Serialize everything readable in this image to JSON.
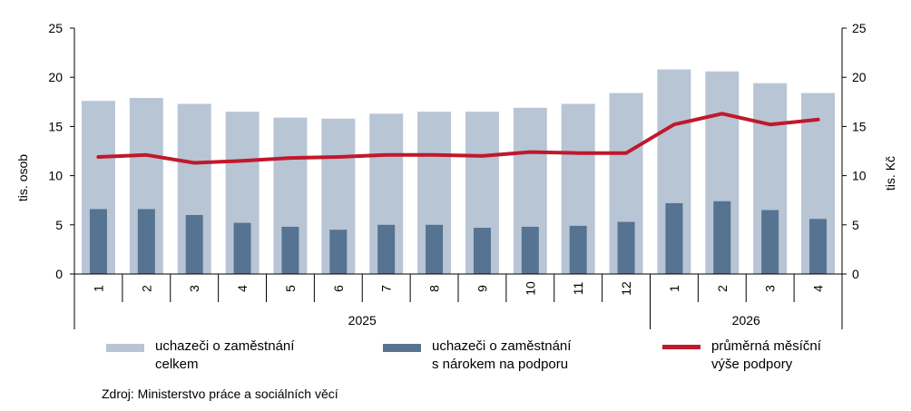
{
  "chart_data": {
    "type": "bar",
    "categories": [
      "1",
      "2",
      "3",
      "4",
      "5",
      "6",
      "7",
      "8",
      "9",
      "10",
      "11",
      "12",
      "1",
      "2",
      "3",
      "4"
    ],
    "groups": [
      {
        "label": "2025",
        "count": 12
      },
      {
        "label": "2026",
        "count": 4
      }
    ],
    "series": [
      {
        "name": "uchazeči o zaměstnání celkem",
        "kind": "bar",
        "axis": "left",
        "color": "#b8c5d4",
        "values": [
          17.6,
          17.9,
          17.3,
          16.5,
          15.9,
          15.8,
          16.3,
          16.5,
          16.5,
          16.9,
          17.3,
          18.4,
          20.8,
          20.6,
          19.4,
          18.4
        ]
      },
      {
        "name": "uchazeči o zaměstnání s nárokem na podporu",
        "kind": "bar",
        "axis": "left",
        "color": "#567392",
        "values": [
          6.6,
          6.6,
          6.0,
          5.2,
          4.8,
          4.5,
          5.0,
          5.0,
          4.7,
          4.8,
          4.9,
          5.3,
          7.2,
          7.4,
          6.5,
          5.6
        ]
      },
      {
        "name": "průměrná měsíční výše podpory",
        "kind": "line",
        "axis": "right",
        "color": "#c0182c",
        "values": [
          11.9,
          12.1,
          11.3,
          11.5,
          11.8,
          11.9,
          12.1,
          12.1,
          12.0,
          12.4,
          12.3,
          12.3,
          15.2,
          16.3,
          15.2,
          15.7
        ]
      }
    ],
    "ylabel": "tis. osob",
    "ylabel_right": "tis. Kč",
    "ylim": [
      0,
      25
    ],
    "ylim_right": [
      0,
      25
    ],
    "yticks": [
      0,
      5,
      10,
      15,
      20,
      25
    ],
    "grid": false,
    "legend_position": "bottom"
  },
  "legend": [
    {
      "line1": "uchazeči o zaměstnání",
      "line2": "celkem",
      "color": "#b8c5d4"
    },
    {
      "line1": "uchazeči o zaměstnání",
      "line2": "s nárokem na podporu",
      "color": "#567392"
    },
    {
      "line1": "průměrná měsíční",
      "line2": "výše podpory",
      "color": "#c0182c"
    }
  ],
  "source": "Zdroj: Ministerstvo  práce a sociálních věcí"
}
